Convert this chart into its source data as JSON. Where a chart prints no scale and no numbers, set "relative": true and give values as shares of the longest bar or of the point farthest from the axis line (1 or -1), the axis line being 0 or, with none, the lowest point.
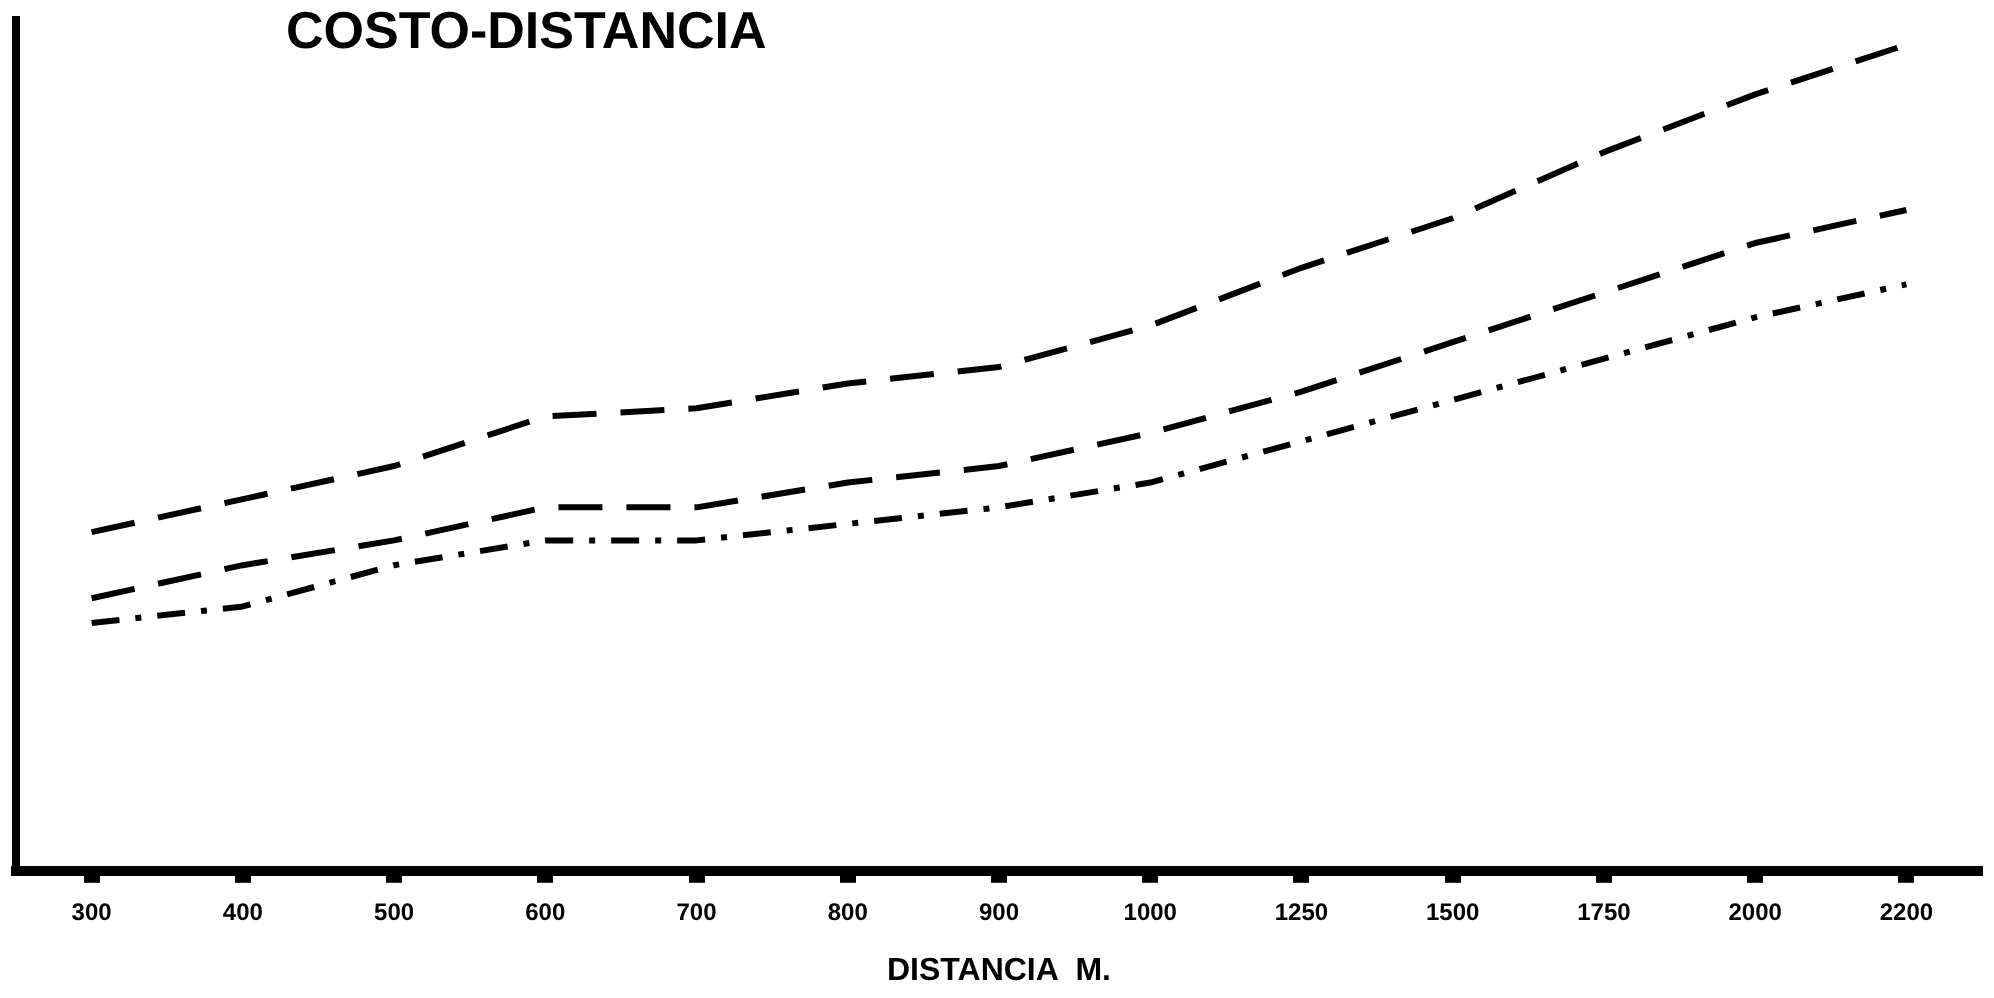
{
  "chart_data": {
    "type": "line",
    "title": "COSTO-DISTANCIA",
    "xlabel": "DISTANCIA  M.",
    "relative": true,
    "marker": "none",
    "grid": false,
    "legend": false,
    "categories": [
      "300",
      "400",
      "500",
      "600",
      "700",
      "800",
      "900",
      "1000",
      "1250",
      "1500",
      "1750",
      "2000",
      "2200"
    ],
    "series": [
      {
        "color": "#000000",
        "line_style": "dashed",
        "values": [
          0.41,
          0.45,
          0.49,
          0.55,
          0.56,
          0.59,
          0.61,
          0.66,
          0.73,
          0.79,
          0.87,
          0.94,
          1
        ]
      },
      {
        "color": "#000000",
        "line_style": "dashed",
        "values": [
          0.33,
          0.37,
          0.4,
          0.44,
          0.44,
          0.47,
          0.49,
          0.53,
          0.58,
          0.64,
          0.7,
          0.76,
          0.8
        ]
      },
      {
        "color": "#000000",
        "line_style": "dotted",
        "values": [
          0.3,
          0.32,
          0.37,
          0.4,
          0.4,
          0.42,
          0.44,
          0.47,
          0.52,
          0.57,
          0.62,
          0.67,
          0.71
        ]
      }
    ]
  }
}
